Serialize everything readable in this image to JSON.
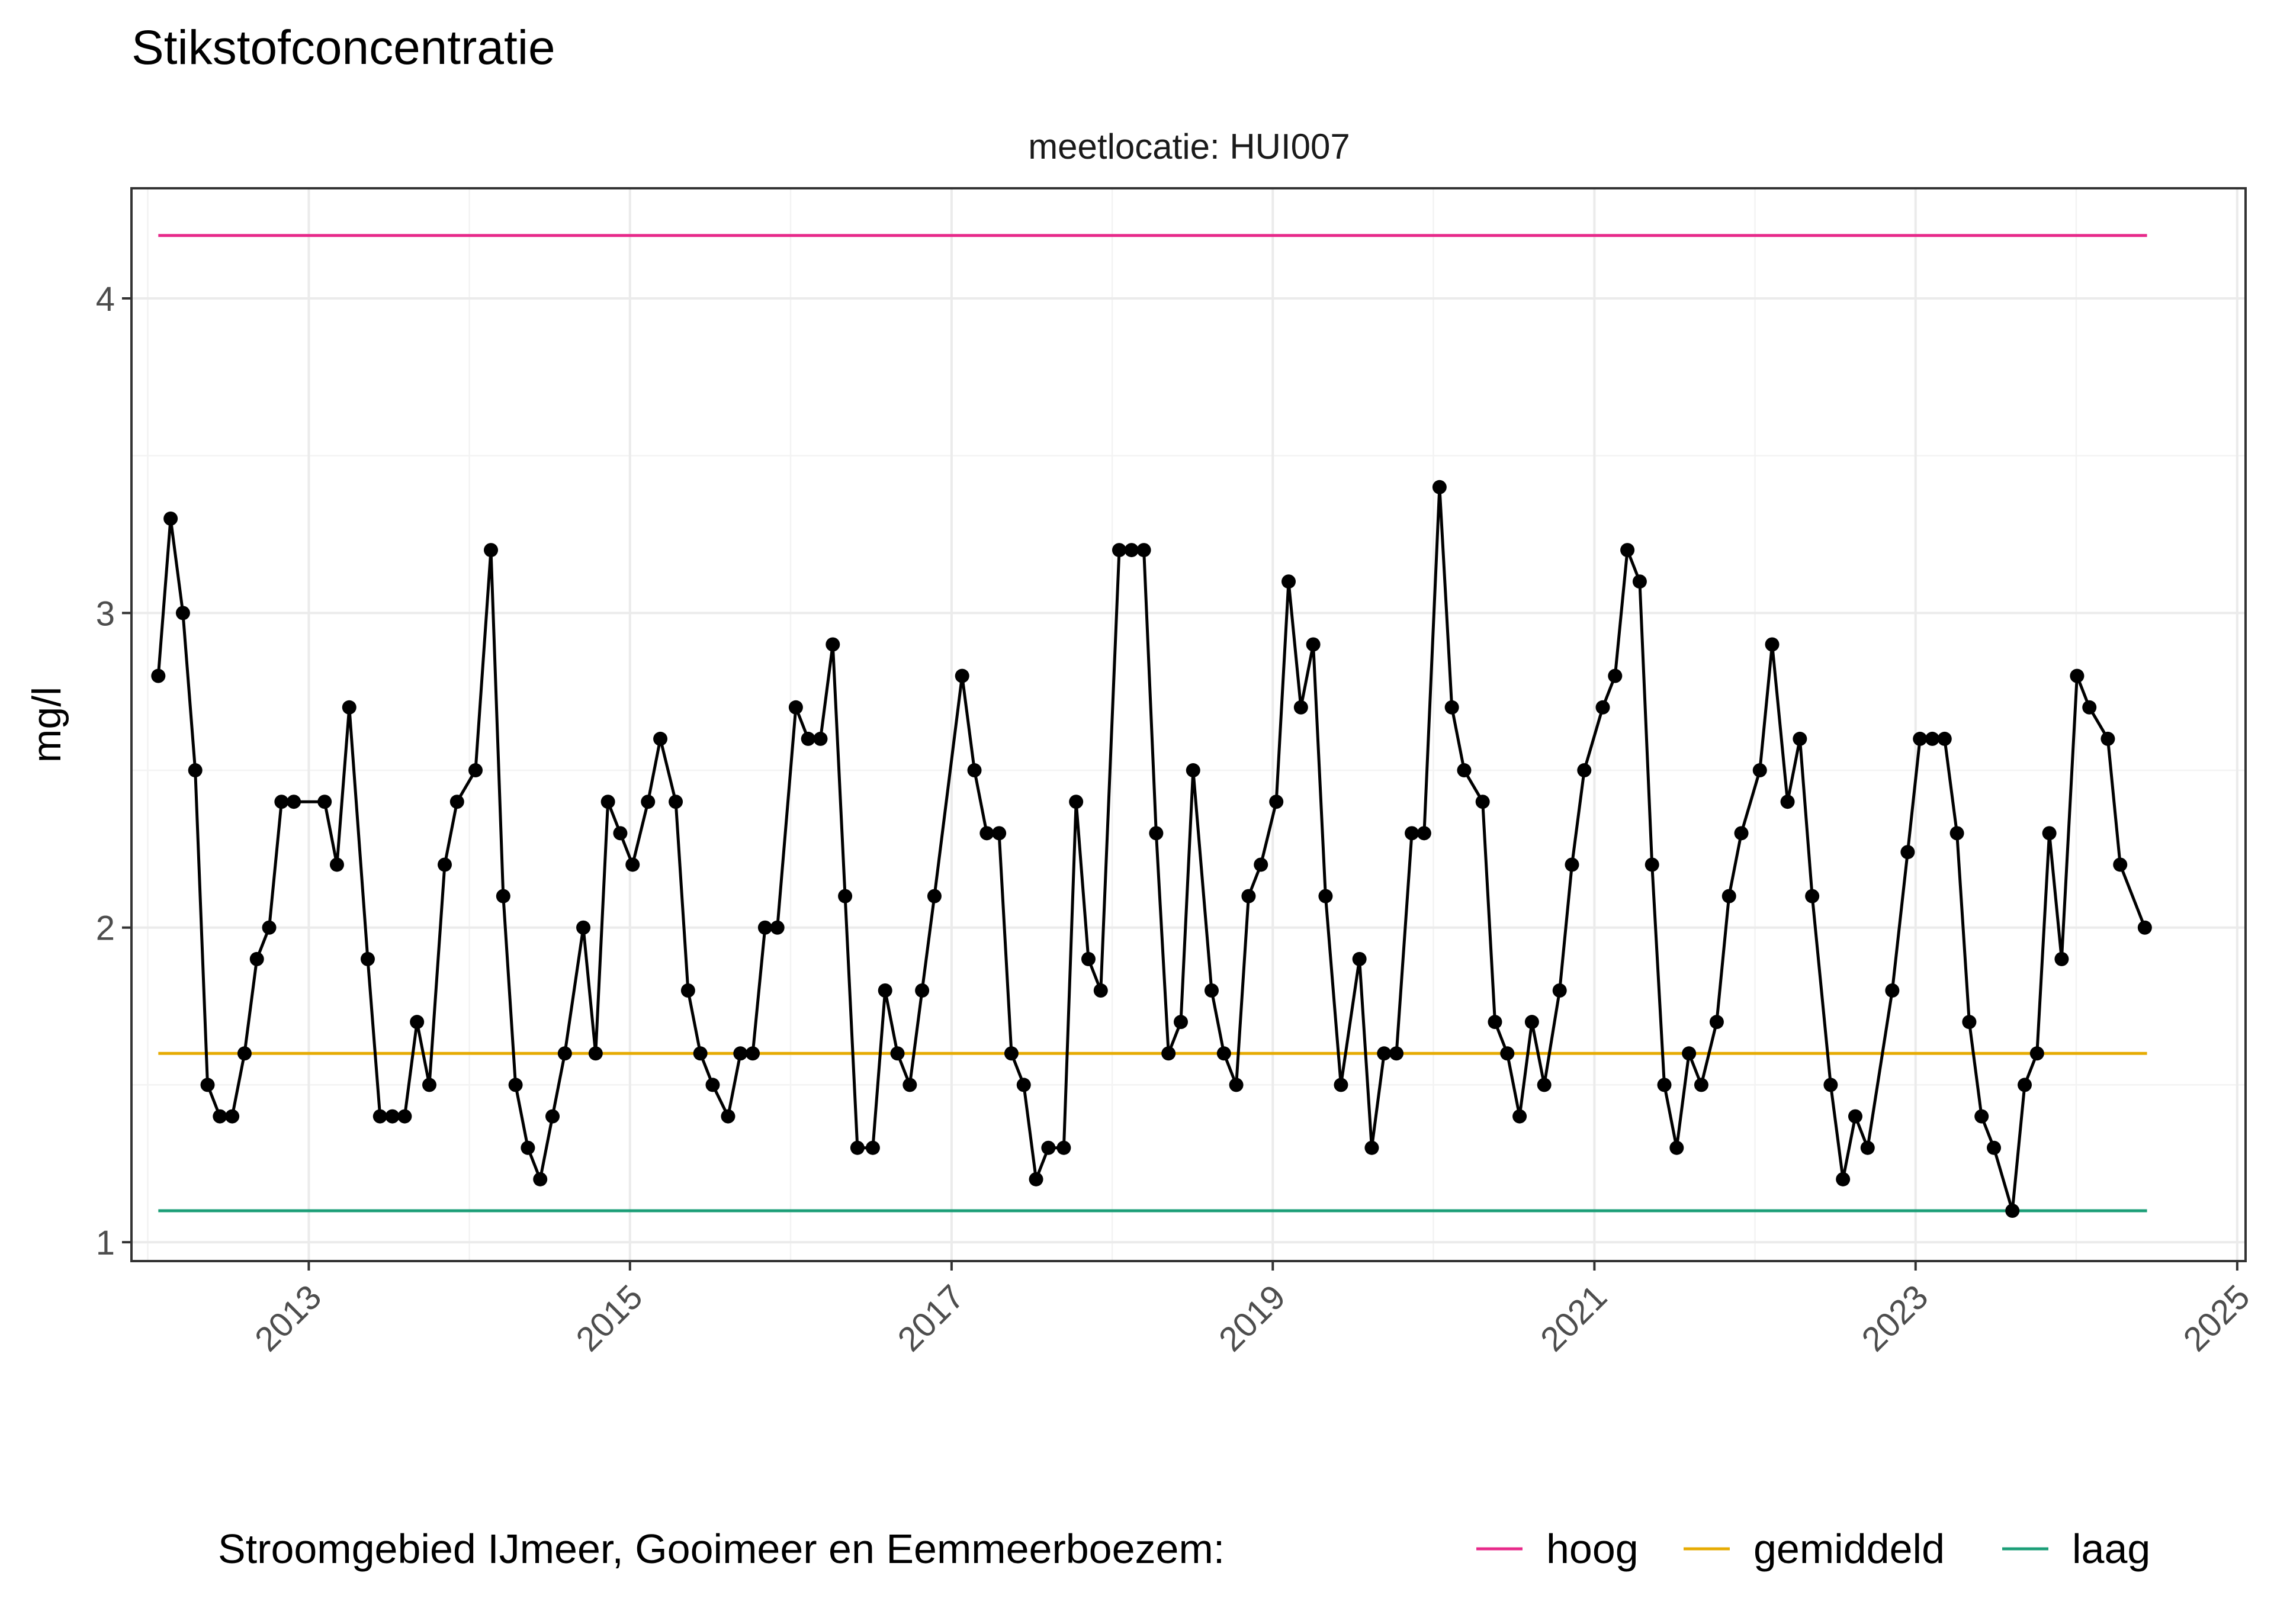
{
  "chart_data": {
    "type": "line",
    "title": "Stikstofconcentratie",
    "facet_label": "meetlocatie: HUI007",
    "ylabel": "mg/l",
    "xlabel": "",
    "xlim": [
      "2011-11-25",
      "2025-01-20"
    ],
    "ylim": [
      0.94,
      4.35
    ],
    "x_ticks": [
      "2013",
      "2015",
      "2017",
      "2019",
      "2021",
      "2023",
      "2025"
    ],
    "y_ticks": [
      "1",
      "2",
      "3",
      "4"
    ],
    "grid": true,
    "legend_position": "bottom",
    "legend_title": "Stroomgebied IJmeer, Gooimeer en Eemmeerboezem:",
    "reference_lines": [
      {
        "name": "hoog",
        "y": 4.2,
        "color": "#e7298a",
        "x_start": "2012-01-25",
        "x_end": "2024-06-10"
      },
      {
        "name": "gemiddeld",
        "y": 1.6,
        "color": "#e6ab02",
        "x_start": "2012-01-25",
        "x_end": "2024-06-10"
      },
      {
        "name": "laag",
        "y": 1.1,
        "color": "#1b9e77",
        "x_start": "2012-01-25",
        "x_end": "2024-06-10"
      }
    ],
    "series": [
      {
        "color": "#000000",
        "points": [
          [
            "2012-01-25",
            2.8
          ],
          [
            "2012-02-22",
            3.3
          ],
          [
            "2012-03-21",
            3.0
          ],
          [
            "2012-04-18",
            2.5
          ],
          [
            "2012-05-16",
            1.5
          ],
          [
            "2012-06-13",
            1.4
          ],
          [
            "2012-07-11",
            1.4
          ],
          [
            "2012-08-08",
            1.6
          ],
          [
            "2012-09-05",
            1.9
          ],
          [
            "2012-10-03",
            2.0
          ],
          [
            "2012-10-31",
            2.4
          ],
          [
            "2012-11-28",
            2.4
          ],
          [
            "2013-02-06",
            2.4
          ],
          [
            "2013-03-06",
            2.2
          ],
          [
            "2013-04-03",
            2.7
          ],
          [
            "2013-05-15",
            1.9
          ],
          [
            "2013-06-12",
            1.4
          ],
          [
            "2013-07-10",
            1.4
          ],
          [
            "2013-08-07",
            1.4
          ],
          [
            "2013-09-04",
            1.7
          ],
          [
            "2013-10-02",
            1.5
          ],
          [
            "2013-11-06",
            2.2
          ],
          [
            "2013-12-04",
            2.4
          ],
          [
            "2014-01-15",
            2.5
          ],
          [
            "2014-02-19",
            3.2
          ],
          [
            "2014-03-19",
            2.1
          ],
          [
            "2014-04-16",
            1.5
          ],
          [
            "2014-05-14",
            1.3
          ],
          [
            "2014-06-11",
            1.2
          ],
          [
            "2014-07-09",
            1.4
          ],
          [
            "2014-08-06",
            1.6
          ],
          [
            "2014-09-17",
            2.0
          ],
          [
            "2014-10-15",
            1.6
          ],
          [
            "2014-11-12",
            2.4
          ],
          [
            "2014-12-10",
            2.3
          ],
          [
            "2015-01-07",
            2.2
          ],
          [
            "2015-02-11",
            2.4
          ],
          [
            "2015-03-11",
            2.6
          ],
          [
            "2015-04-15",
            2.4
          ],
          [
            "2015-05-13",
            1.8
          ],
          [
            "2015-06-10",
            1.6
          ],
          [
            "2015-07-08",
            1.5
          ],
          [
            "2015-08-12",
            1.4
          ],
          [
            "2015-09-09",
            1.6
          ],
          [
            "2015-10-07",
            1.6
          ],
          [
            "2015-11-04",
            2.0
          ],
          [
            "2015-12-02",
            2.0
          ],
          [
            "2016-01-13",
            2.7
          ],
          [
            "2016-02-10",
            2.6
          ],
          [
            "2016-03-09",
            2.6
          ],
          [
            "2016-04-06",
            2.9
          ],
          [
            "2016-05-04",
            2.1
          ],
          [
            "2016-06-01",
            1.3
          ],
          [
            "2016-07-06",
            1.3
          ],
          [
            "2016-08-03",
            1.8
          ],
          [
            "2016-08-31",
            1.6
          ],
          [
            "2016-09-28",
            1.5
          ],
          [
            "2016-10-26",
            1.8
          ],
          [
            "2016-11-23",
            2.1
          ],
          [
            "2017-01-25",
            2.8
          ],
          [
            "2017-02-22",
            2.5
          ],
          [
            "2017-03-22",
            2.3
          ],
          [
            "2017-04-19",
            2.3
          ],
          [
            "2017-05-17",
            1.6
          ],
          [
            "2017-06-14",
            1.5
          ],
          [
            "2017-07-12",
            1.2
          ],
          [
            "2017-08-09",
            1.3
          ],
          [
            "2017-09-13",
            1.3
          ],
          [
            "2017-10-11",
            2.4
          ],
          [
            "2017-11-08",
            1.9
          ],
          [
            "2017-12-06",
            1.8
          ],
          [
            "2018-01-17",
            3.2
          ],
          [
            "2018-02-14",
            3.2
          ],
          [
            "2018-03-14",
            3.2
          ],
          [
            "2018-04-11",
            2.3
          ],
          [
            "2018-05-09",
            1.6
          ],
          [
            "2018-06-06",
            1.7
          ],
          [
            "2018-07-04",
            2.5
          ],
          [
            "2018-08-15",
            1.8
          ],
          [
            "2018-09-12",
            1.6
          ],
          [
            "2018-10-10",
            1.5
          ],
          [
            "2018-11-07",
            2.1
          ],
          [
            "2018-12-05",
            2.2
          ],
          [
            "2019-01-09",
            2.4
          ],
          [
            "2019-02-06",
            3.1
          ],
          [
            "2019-03-06",
            2.7
          ],
          [
            "2019-04-03",
            2.9
          ],
          [
            "2019-05-01",
            2.1
          ],
          [
            "2019-06-05",
            1.5
          ],
          [
            "2019-07-17",
            1.9
          ],
          [
            "2019-08-14",
            1.3
          ],
          [
            "2019-09-11",
            1.6
          ],
          [
            "2019-10-09",
            1.6
          ],
          [
            "2019-11-13",
            2.3
          ],
          [
            "2019-12-11",
            2.3
          ],
          [
            "2020-01-15",
            3.4
          ],
          [
            "2020-02-12",
            2.7
          ],
          [
            "2020-03-11",
            2.5
          ],
          [
            "2020-04-22",
            2.4
          ],
          [
            "2020-05-20",
            1.7
          ],
          [
            "2020-06-17",
            1.6
          ],
          [
            "2020-07-15",
            1.4
          ],
          [
            "2020-08-12",
            1.7
          ],
          [
            "2020-09-09",
            1.5
          ],
          [
            "2020-10-14",
            1.8
          ],
          [
            "2020-11-11",
            2.2
          ],
          [
            "2020-12-09",
            2.5
          ],
          [
            "2021-01-20",
            2.7
          ],
          [
            "2021-02-17",
            2.8
          ],
          [
            "2021-03-17",
            3.2
          ],
          [
            "2021-04-14",
            3.1
          ],
          [
            "2021-05-12",
            2.2
          ],
          [
            "2021-06-09",
            1.5
          ],
          [
            "2021-07-07",
            1.3
          ],
          [
            "2021-08-04",
            1.6
          ],
          [
            "2021-09-01",
            1.5
          ],
          [
            "2021-10-06",
            1.7
          ],
          [
            "2021-11-03",
            2.1
          ],
          [
            "2021-12-01",
            2.3
          ],
          [
            "2022-01-12",
            2.5
          ],
          [
            "2022-02-09",
            2.9
          ],
          [
            "2022-03-16",
            2.4
          ],
          [
            "2022-04-13",
            2.6
          ],
          [
            "2022-05-11",
            2.1
          ],
          [
            "2022-06-22",
            1.5
          ],
          [
            "2022-07-20",
            1.2
          ],
          [
            "2022-08-17",
            1.4
          ],
          [
            "2022-09-14",
            1.3
          ],
          [
            "2022-11-09",
            1.8
          ],
          [
            "2022-12-14",
            2.24
          ],
          [
            "2023-01-11",
            2.6
          ],
          [
            "2023-02-08",
            2.6
          ],
          [
            "2023-03-08",
            2.6
          ],
          [
            "2023-04-05",
            2.3
          ],
          [
            "2023-05-03",
            1.7
          ],
          [
            "2023-05-31",
            1.4
          ],
          [
            "2023-06-28",
            1.3
          ],
          [
            "2023-08-09",
            1.1
          ],
          [
            "2023-09-06",
            1.5
          ],
          [
            "2023-10-04",
            1.6
          ],
          [
            "2023-11-01",
            2.3
          ],
          [
            "2023-11-29",
            1.9
          ],
          [
            "2024-01-03",
            2.8
          ],
          [
            "2024-01-31",
            2.7
          ],
          [
            "2024-03-13",
            2.6
          ],
          [
            "2024-04-10",
            2.2
          ],
          [
            "2024-06-05",
            2.0
          ]
        ]
      }
    ]
  }
}
